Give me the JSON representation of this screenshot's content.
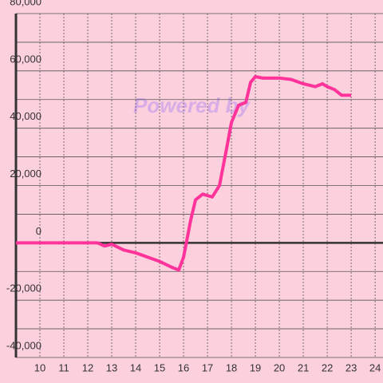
{
  "chart_data": {
    "type": "line",
    "watermark": "Powered by",
    "x": [
      9,
      12.4,
      12.7,
      13,
      13.5,
      14,
      14.5,
      15,
      15.5,
      15.8,
      16,
      16.3,
      16.5,
      16.8,
      17.2,
      17.5,
      17.8,
      18,
      18.3,
      18.6,
      18.8,
      19,
      19.3,
      20,
      20.5,
      21,
      21.5,
      21.8,
      22,
      22.3,
      22.6,
      23
    ],
    "series": [
      {
        "color": "#ff3399",
        "values": [
          0,
          0,
          -1100,
          -500,
          -2500,
          -3500,
          -5000,
          -6500,
          -8500,
          -9500,
          -5000,
          8000,
          15000,
          17000,
          16000,
          20000,
          33000,
          42000,
          48000,
          49000,
          56000,
          58000,
          57500,
          57500,
          57000,
          55500,
          54500,
          55500,
          54500,
          53500,
          51500,
          51500
        ]
      }
    ],
    "xlim": [
      9,
      24.33
    ],
    "xticks": [
      10,
      11,
      12,
      13,
      14,
      15,
      16,
      17,
      18,
      19,
      20,
      21,
      22,
      23,
      24
    ],
    "ylim": [
      -40000,
      80000
    ],
    "yticks": [
      {
        "value": -40000,
        "label": "-40,000"
      },
      {
        "value": -20000,
        "label": "-20,000"
      },
      0,
      {
        "value": 20000,
        "label": "20,000"
      },
      {
        "value": 40000,
        "label": "40,000"
      },
      {
        "value": 60000,
        "label": "60,000"
      },
      {
        "value": 80000,
        "label": "80,000"
      }
    ],
    "minor_yticks": [
      -30000,
      -10000,
      10000,
      30000,
      50000,
      70000
    ],
    "grid": true
  }
}
